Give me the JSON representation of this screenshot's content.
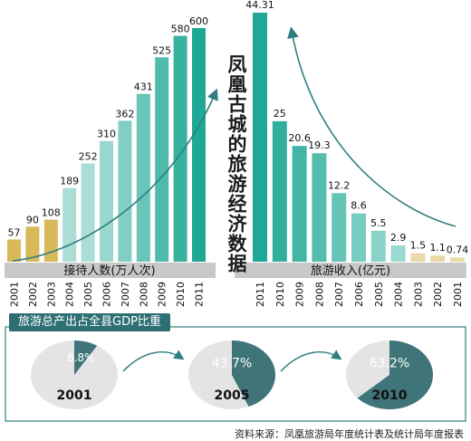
{
  "title": "凤凰古城的旅游经济数据",
  "section_title": "旅游总产出占全县GDP比重",
  "source": "资料来源：凤凰旅游局年度统计表及统计局年度报表",
  "colors": {
    "teal_dark": "#1ea895",
    "teal_light": "#a9ddd6",
    "gold": "#d7b95a",
    "pie_dark": "#3f7478",
    "pie_light": "#e4e4e4",
    "band": "#c8c8c8",
    "arrow": "#2f7f80"
  },
  "chart_data": [
    {
      "type": "bar",
      "title": "",
      "xlabel": "接待人数(万人次)",
      "ylabel": "",
      "categories": [
        "2001",
        "2002",
        "2003",
        "2004",
        "2005",
        "2006",
        "2007",
        "2008",
        "2009",
        "2010",
        "2011"
      ],
      "values": [
        57,
        90,
        108,
        189,
        252,
        310,
        362,
        431,
        525,
        580,
        600
      ],
      "ylim": [
        0,
        600
      ],
      "grid": false,
      "legend": "none"
    },
    {
      "type": "bar",
      "title": "",
      "xlabel": "旅游收入(亿元)",
      "ylabel": "",
      "categories": [
        "2011",
        "2010",
        "2009",
        "2008",
        "2007",
        "2006",
        "2005",
        "2004",
        "2003",
        "2002",
        "2001"
      ],
      "values": [
        44.31,
        25,
        20.6,
        19.3,
        12.2,
        8.6,
        5.5,
        2.9,
        1.5,
        1.1,
        0.74
      ],
      "value_labels": [
        "44.31",
        "25",
        "20.6",
        "19.3",
        "12.2",
        "8.6",
        "5.5",
        "2.9",
        "1.5",
        "1.1",
        "0.74"
      ],
      "ylim": [
        0,
        44.31
      ],
      "grid": false,
      "legend": "none"
    },
    {
      "type": "pie",
      "title": "",
      "pies": [
        {
          "year": "2001",
          "share": 8.8,
          "label": "8.8%"
        },
        {
          "year": "2005",
          "share": 43.7,
          "label": "43.7%"
        },
        {
          "year": "2010",
          "share": 63.2,
          "label": "63.2%"
        }
      ]
    }
  ]
}
